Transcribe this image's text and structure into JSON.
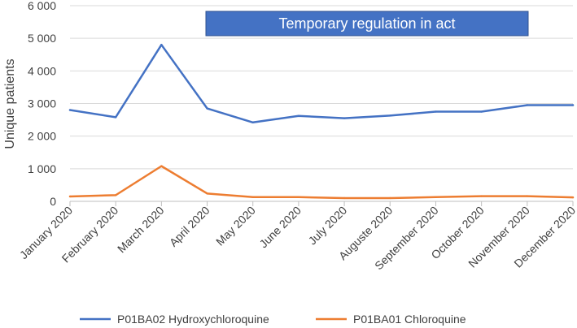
{
  "chart_data": {
    "type": "line",
    "title": "",
    "xlabel": "",
    "ylabel": "Unique patients",
    "ylim": [
      0,
      6000
    ],
    "yticks": [
      0,
      1000,
      2000,
      3000,
      4000,
      5000,
      6000
    ],
    "ytick_labels": [
      "0",
      "1 000",
      "2 000",
      "3 000",
      "4 000",
      "5 000",
      "6 000"
    ],
    "grid": true,
    "legend_position": "bottom",
    "annotation": "Temporary regulation in act",
    "categories": [
      "January 2020",
      "February 2020",
      "March 2020",
      "April 2020",
      "May 2020",
      "June 2020",
      "July 2020",
      "Auguste 2020",
      "September 2020",
      "October 2020",
      "November 2020",
      "December 2020"
    ],
    "series": [
      {
        "name": "P01BA02 Hydroxychloroquine",
        "color": "#4472C4",
        "values": [
          2800,
          2580,
          4800,
          2850,
          2420,
          2620,
          2550,
          2630,
          2750,
          2750,
          2950,
          2950
        ]
      },
      {
        "name": "P01BA01 Chloroquine",
        "color": "#ED7D31",
        "values": [
          150,
          190,
          1080,
          240,
          130,
          130,
          100,
          100,
          130,
          160,
          160,
          120
        ]
      }
    ]
  }
}
